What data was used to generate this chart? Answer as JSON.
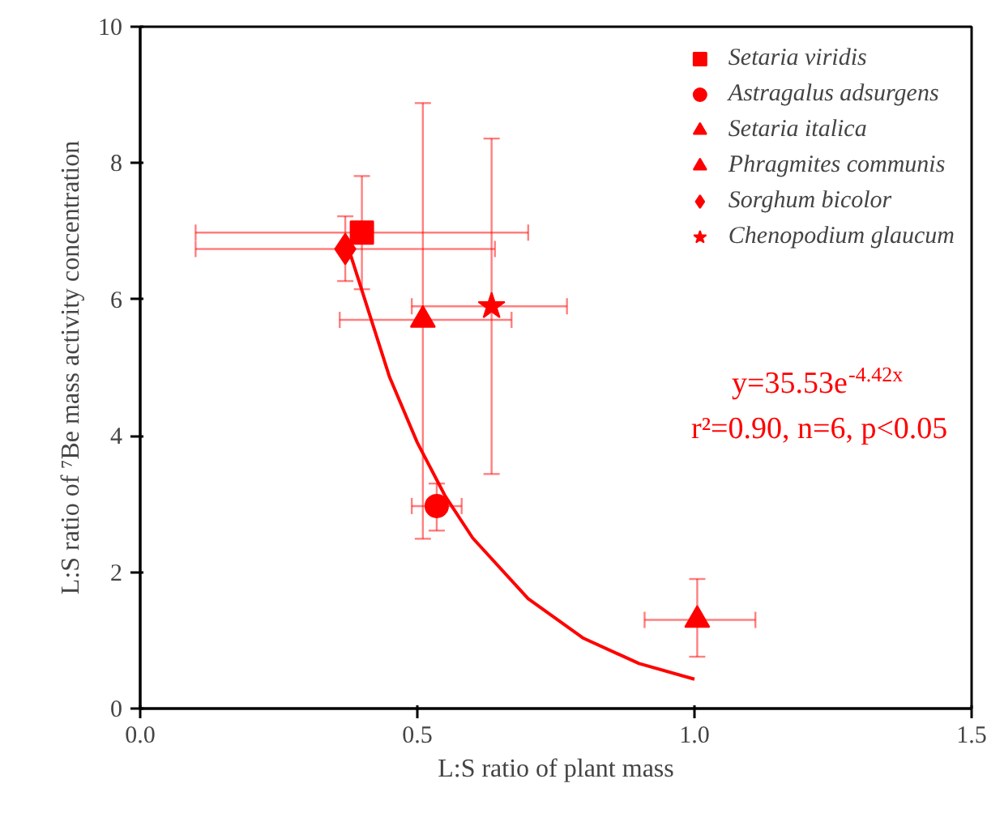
{
  "chart_data": {
    "type": "scatter",
    "xlabel": "L:S ratio of plant mass",
    "ylabel": "L:S ratio of ⁷Be mass activity concentration",
    "xlim": [
      0,
      1.5
    ],
    "ylim": [
      0,
      10
    ],
    "xticks": [
      {
        "value": 0,
        "label": "0.0"
      },
      {
        "value": 0.5,
        "label": "0.5"
      },
      {
        "value": 1,
        "label": "1.0"
      },
      {
        "value": 1.5,
        "label": "1.5"
      }
    ],
    "yticks": [
      0,
      2,
      4,
      6,
      8,
      10
    ],
    "grid": false,
    "legend": "top right",
    "series": [
      {
        "name": "Setaria viridis",
        "color": "#ff0000",
        "marker": "square",
        "x": [
          0.4
        ],
        "values": [
          6.98
        ],
        "errors": [
          [
            6.15,
            7.81
          ]
        ],
        "xerrors": [
          [
            0.1,
            0.7
          ]
        ]
      },
      {
        "name": "Astragalus adsurgens",
        "color": "#ff0000",
        "marker": "circle",
        "x": [
          0.535
        ],
        "values": [
          2.97
        ],
        "errors": [
          [
            2.61,
            3.3
          ]
        ],
        "xerrors": [
          [
            0.49,
            0.58
          ]
        ]
      },
      {
        "name": "Setaria italica",
        "color": "#ff0000",
        "marker": "triangle",
        "x": [
          0.51
        ],
        "values": [
          5.7
        ],
        "errors": [
          [
            2.49,
            8.88
          ]
        ],
        "xerrors": [
          [
            0.36,
            0.67
          ]
        ]
      },
      {
        "name": "Phragmites communis",
        "color": "#ff0000",
        "marker": "triangle",
        "x": [
          1.005
        ],
        "values": [
          1.3
        ],
        "errors": [
          [
            0.76,
            1.9
          ]
        ],
        "xerrors": [
          [
            0.91,
            1.11
          ]
        ]
      },
      {
        "name": "Sorghum bicolor",
        "color": "#ff0000",
        "marker": "diamond",
        "x": [
          0.37
        ],
        "values": [
          6.74
        ],
        "errors": [
          [
            6.27,
            7.22
          ]
        ],
        "xerrors": [
          [
            0.1,
            0.64
          ]
        ]
      },
      {
        "name": "Chenopodium glaucum",
        "color": "#ff0000",
        "marker": "star",
        "x": [
          0.634
        ],
        "values": [
          5.9
        ],
        "errors": [
          [
            3.44,
            8.36
          ]
        ],
        "xerrors": [
          [
            0.49,
            0.77
          ]
        ]
      },
      {
        "type": "line",
        "color": "#ff0000",
        "line_style": "solid",
        "x": [
          0.375,
          0.45,
          0.5,
          0.55,
          0.6,
          0.7,
          0.8,
          0.9,
          1.0
        ],
        "values": [
          6.77,
          4.86,
          3.9,
          3.12,
          2.5,
          1.61,
          1.03,
          0.66,
          0.43
        ]
      }
    ],
    "annotations": [
      "y=35.53e$^{-4.42x}$",
      "r²=0.90, n=6, p<0.05"
    ]
  }
}
